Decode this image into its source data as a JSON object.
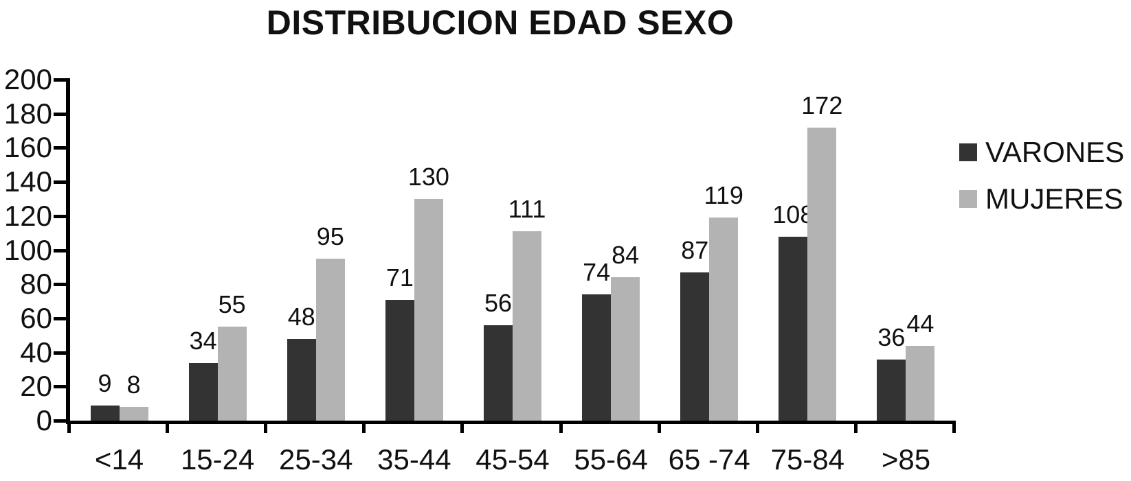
{
  "chart_data": {
    "type": "bar",
    "title": "DISTRIBUCION EDAD SEXO",
    "categories": [
      "<14",
      "15-24",
      "25-34",
      "35-44",
      "45-54",
      "55-64",
      "65 -74",
      "75-84",
      ">85"
    ],
    "series": [
      {
        "name": "VARONES",
        "color": "#333333",
        "values": [
          9,
          34,
          48,
          71,
          56,
          74,
          87,
          108,
          36
        ]
      },
      {
        "name": "MUJERES",
        "color": "#b3b3b3",
        "values": [
          8,
          55,
          95,
          130,
          111,
          84,
          119,
          172,
          44
        ]
      }
    ],
    "ylim": [
      0,
      200
    ],
    "ytick_step": 20,
    "yticks": [
      0,
      20,
      40,
      60,
      80,
      100,
      120,
      140,
      160,
      180,
      200
    ],
    "xlabel": "",
    "ylabel": "",
    "grid": false,
    "data_labels": true,
    "legend_position": "right"
  },
  "colors": {
    "axis": "#000000",
    "text": "#111111",
    "background": "#ffffff"
  }
}
